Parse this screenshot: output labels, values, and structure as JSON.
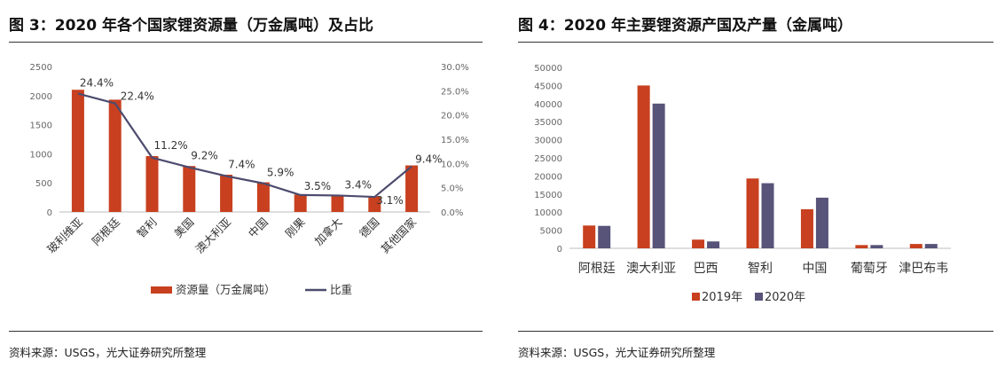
{
  "left": {
    "title": "图 3：2020 年各个国家锂资源量（万金属吨）及占比",
    "source": "资料来源：USGS，光大证券研究所整理"
  },
  "right": {
    "title": "图 4：2020 年主要锂资源产国及产量（金属吨）",
    "source": "资料来源：USGS，光大证券研究所整理"
  },
  "colors": {
    "bar_primary": "#c8401f",
    "bar_secondary": "#575379",
    "line": "#4d4b6e",
    "axis": "#bdbdbd"
  },
  "chart_data": [
    {
      "type": "bar",
      "combo": "bar+line",
      "categories": [
        "玻利维亚",
        "阿根廷",
        "智利",
        "美国",
        "澳大利亚",
        "中国",
        "刚果",
        "加拿大",
        "德国",
        "其他国家"
      ],
      "series": [
        {
          "name": "资源量（万金属吨）",
          "type": "bar",
          "axis": "left",
          "values": [
            2100,
            1930,
            960,
            790,
            640,
            510,
            300,
            290,
            270,
            800
          ]
        },
        {
          "name": "比重",
          "type": "line",
          "axis": "right",
          "values": [
            24.4,
            22.4,
            11.2,
            9.2,
            7.4,
            5.9,
            3.5,
            3.4,
            3.1,
            9.4
          ],
          "labels": [
            "24.4%",
            "22.4%",
            "11.2%",
            "9.2%",
            "7.4%",
            "5.9%",
            "3.5%",
            "3.4%",
            "3.1%",
            "9.4%"
          ]
        }
      ],
      "ylim": [
        0,
        2500
      ],
      "yticks": [
        "0",
        "500",
        "1000",
        "1500",
        "2000",
        "2500"
      ],
      "y2lim": [
        0,
        30
      ],
      "y2ticks": [
        "0.0%",
        "5.0%",
        "10.0%",
        "15.0%",
        "20.0%",
        "25.0%",
        "30.0%"
      ],
      "legend": [
        "资源量（万金属吨）",
        "比重"
      ],
      "legend_position": "bottom",
      "grid": false
    },
    {
      "type": "bar",
      "categories": [
        "阿根廷",
        "澳大利亚",
        "巴西",
        "智利",
        "中国",
        "葡萄牙",
        "津巴布韦"
      ],
      "series": [
        {
          "name": "2019年",
          "values": [
            6300,
            45000,
            2400,
            19300,
            10800,
            900,
            1200
          ]
        },
        {
          "name": "2020年",
          "values": [
            6200,
            40000,
            1900,
            18000,
            14000,
            900,
            1200
          ]
        }
      ],
      "ylim": [
        0,
        50000
      ],
      "yticks": [
        "0",
        "5000",
        "10000",
        "15000",
        "20000",
        "25000",
        "30000",
        "35000",
        "40000",
        "45000",
        "50000"
      ],
      "legend": [
        "2019年",
        "2020年"
      ],
      "legend_position": "bottom",
      "grid": false
    }
  ]
}
